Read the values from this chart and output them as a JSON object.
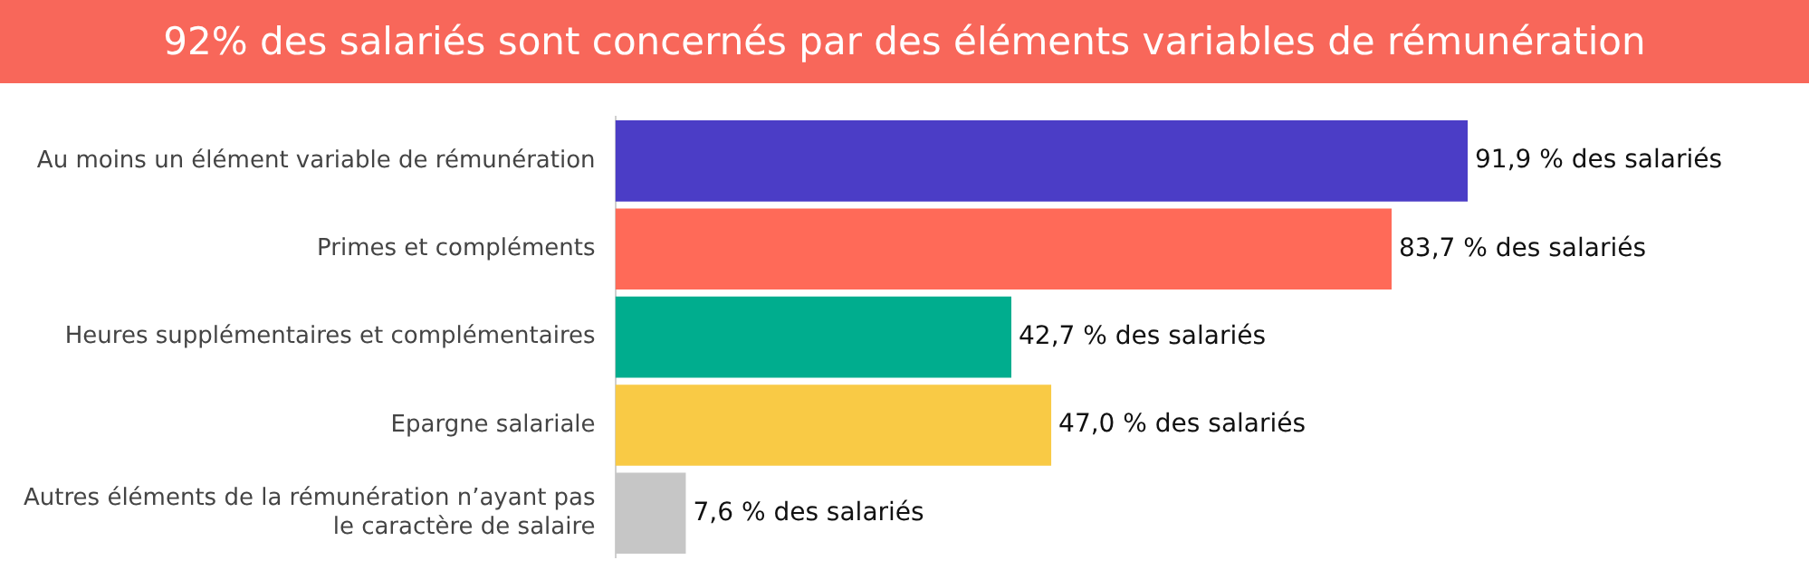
{
  "chart_data": {
    "type": "bar",
    "orientation": "horizontal",
    "title": "92% des salariés sont concernés par des éléments variables de rémunération",
    "categories": [
      "Au moins un élément variable de rémunération",
      "Primes et compléments",
      "Heures supplémentaires et complémentaires",
      "Epargne salariale",
      "Autres éléments de la rémunération n’ayant pas le caractère de salaire"
    ],
    "values": [
      91.9,
      83.7,
      42.7,
      47.0,
      7.6
    ],
    "colors": [
      "#4b3dc6",
      "#ff6a58",
      "#00ad8e",
      "#f9ca45",
      "#c6c6c6"
    ],
    "value_labels": [
      "91,9 % des salariés",
      "83,7 % des salariés",
      "42,7 % des salariés",
      "47,0 % des salariés",
      "7,6 % des salariés"
    ],
    "grid": false,
    "legend": false,
    "tick_labels": false
  }
}
